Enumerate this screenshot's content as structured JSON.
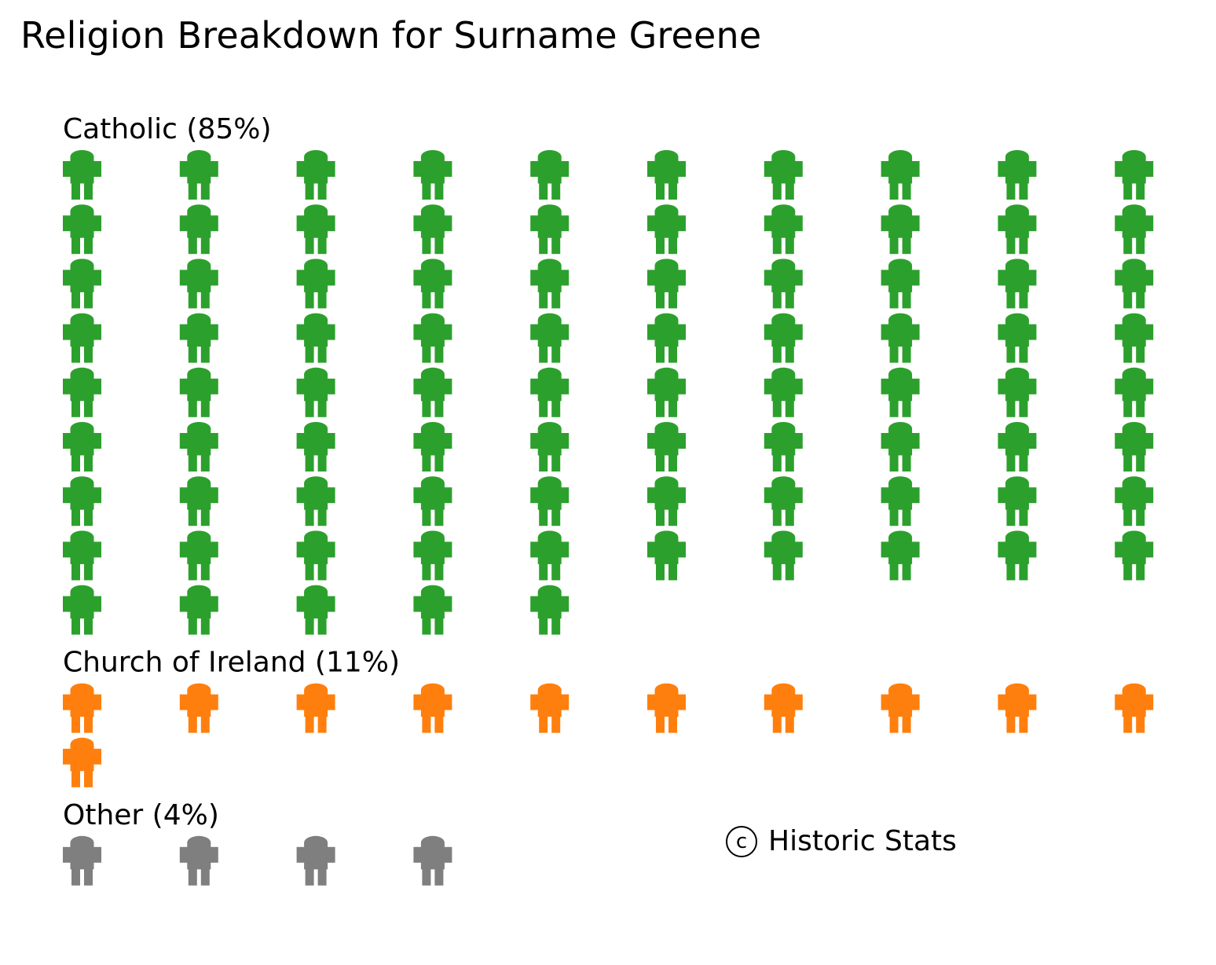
{
  "chart_data": {
    "type": "pictogram",
    "title": "Religion Breakdown for Surname Greene",
    "icon": "person-icon",
    "icons_per_row": 10,
    "groups": [
      {
        "label": "Catholic (85%)",
        "name": "Catholic",
        "percent": 85,
        "count": 85,
        "color": "#2ca02c"
      },
      {
        "label": "Church of Ireland (11%)",
        "name": "Church of Ireland",
        "percent": 11,
        "count": 11,
        "color": "#ff7f0e"
      },
      {
        "label": "Other (4%)",
        "name": "Other",
        "percent": 4,
        "count": 4,
        "color": "#7f7f7f"
      }
    ]
  },
  "credit": {
    "symbol": "c",
    "text": "Historic Stats"
  }
}
